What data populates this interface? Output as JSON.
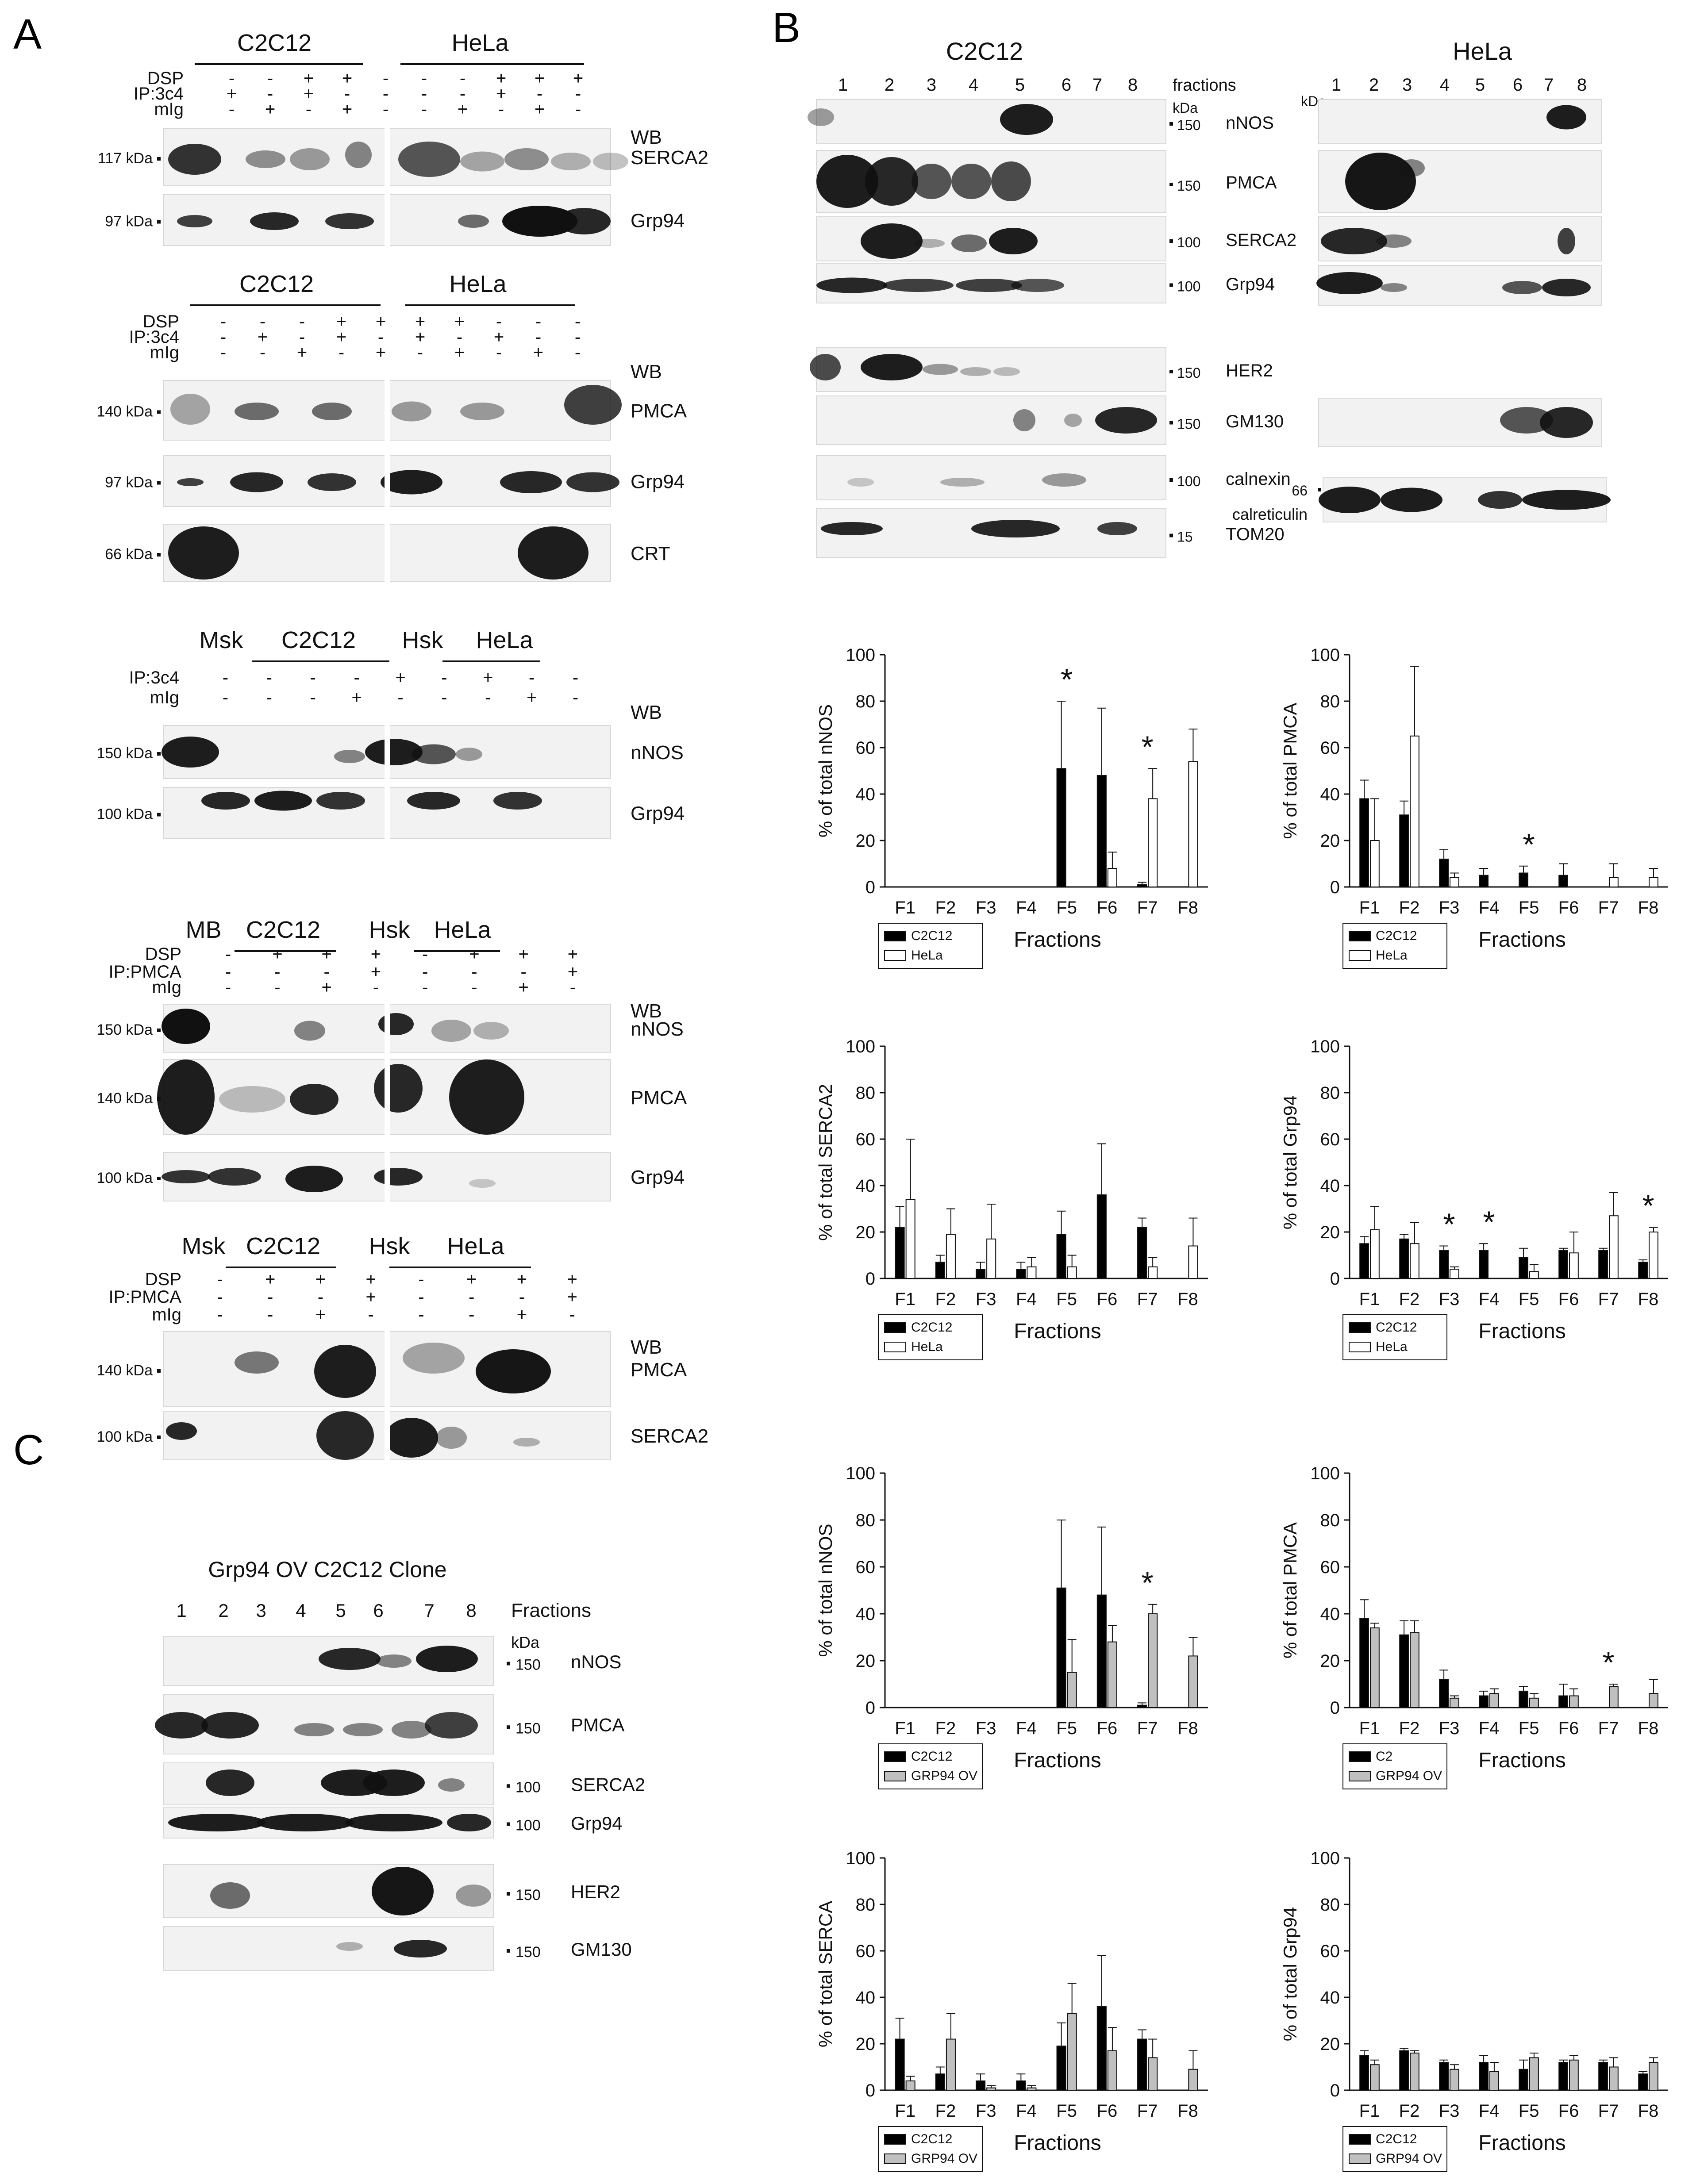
{
  "panel_labels": [
    "A",
    "B",
    "C"
  ],
  "panel_a": {
    "blocks": [
      {
        "headers": [
          "C2C12",
          "HeLa"
        ],
        "row_names": [
          "DSP",
          "IP:3c4",
          "mIg"
        ],
        "lane_signs": [
          [
            "-",
            "-",
            "+",
            "+",
            "-",
            "-",
            "-",
            "+",
            "+",
            "+"
          ],
          [
            "+",
            "-",
            "+",
            "-",
            "-",
            "-",
            "-",
            "+",
            "-",
            "-"
          ],
          [
            "-",
            "+",
            "-",
            "+",
            "-",
            "-",
            "+",
            "-",
            "+",
            "-"
          ]
        ],
        "wb_label": "WB",
        "blots": [
          {
            "marker": "117 kDa",
            "protein": "SERCA2"
          },
          {
            "marker": "97 kDa",
            "protein": "Grp94"
          }
        ]
      },
      {
        "headers": [
          "C2C12",
          "HeLa"
        ],
        "row_names": [
          "DSP",
          "IP:3c4",
          "mIg"
        ],
        "lane_signs": [
          [
            "-",
            "-",
            "-",
            "+",
            "+",
            "+",
            "+",
            "-",
            "-",
            "-"
          ],
          [
            "-",
            "+",
            "-",
            "+",
            "-",
            "+",
            "-",
            "+",
            "-",
            "-"
          ],
          [
            "-",
            "-",
            "+",
            "-",
            "+",
            "-",
            "+",
            "-",
            "+",
            "-"
          ]
        ],
        "wb_label": "WB",
        "blots": [
          {
            "marker": "140 kDa",
            "protein": "PMCA"
          },
          {
            "marker": "97 kDa",
            "protein": "Grp94"
          },
          {
            "marker": "66 kDa",
            "protein": "CRT"
          }
        ]
      },
      {
        "headers": [
          "Msk",
          "C2C12",
          "Hsk",
          "HeLa"
        ],
        "row_names": [
          "IP:3c4",
          "mIg"
        ],
        "lane_signs": [
          [
            "-",
            "-",
            "-",
            "-",
            "+",
            "-",
            "+",
            "-",
            "-"
          ],
          [
            "-",
            "-",
            "-",
            "+",
            "-",
            "-",
            "-",
            "+",
            "-"
          ]
        ],
        "wb_label": "WB",
        "blots": [
          {
            "marker": "150 kDa",
            "protein": "nNOS"
          },
          {
            "marker": "100 kDa",
            "protein": "Grp94"
          }
        ]
      },
      {
        "headers": [
          "MB",
          "C2C12",
          "Hsk",
          "HeLa"
        ],
        "row_names": [
          "DSP",
          "IP:PMCA",
          "mIg"
        ],
        "lane_signs": [
          [
            "-",
            "+",
            "+",
            "+",
            "-",
            "+",
            "+",
            "+"
          ],
          [
            "-",
            "-",
            "-",
            "+",
            "-",
            "-",
            "-",
            "+"
          ],
          [
            "-",
            "-",
            "+",
            "-",
            "-",
            "-",
            "+",
            "-"
          ]
        ],
        "wb_label": "WB",
        "blots": [
          {
            "marker": "150 kDa",
            "protein": "nNOS"
          },
          {
            "marker": "140 kDa",
            "protein": "PMCA"
          },
          {
            "marker": "100 kDa",
            "protein": "Grp94"
          }
        ]
      },
      {
        "headers": [
          "Msk",
          "C2C12",
          "Hsk",
          "HeLa"
        ],
        "row_names": [
          "DSP",
          "IP:PMCA",
          "mIg"
        ],
        "lane_signs": [
          [
            "-",
            "+",
            "+",
            "+",
            "-",
            "+",
            "+",
            "+"
          ],
          [
            "-",
            "-",
            "-",
            "+",
            "-",
            "-",
            "-",
            "+"
          ],
          [
            "-",
            "-",
            "+",
            "-",
            "-",
            "-",
            "+",
            "-"
          ]
        ],
        "wb_label": "WB",
        "blots": [
          {
            "marker": "140 kDa",
            "protein": "PMCA"
          },
          {
            "marker": "100 kDa",
            "protein": "SERCA2"
          }
        ]
      }
    ]
  },
  "panel_b": {
    "left_title": "C2C12",
    "right_title": "HeLa",
    "fractions_label": "fractions",
    "kda_label": "kDa",
    "lane_numbers": [
      "1",
      "2",
      "3",
      "4",
      "5",
      "6",
      "7",
      "8"
    ],
    "c2c12_blots": [
      {
        "protein": "nNOS",
        "marker": "150"
      },
      {
        "protein": "PMCA",
        "marker": "150"
      },
      {
        "protein": "SERCA2",
        "marker": "100"
      },
      {
        "protein": "Grp94",
        "marker": "100"
      },
      {
        "protein": "HER2",
        "marker": "150"
      },
      {
        "protein": "GM130",
        "marker": "150"
      },
      {
        "protein": "calnexin",
        "marker": "100"
      },
      {
        "protein": "TOM20",
        "marker": "15"
      }
    ],
    "hela_extra_marker": "66",
    "hela_extra_protein": "calreticulin"
  },
  "panel_c": {
    "title": "Grp94 OV C2C12 Clone",
    "fractions_label": "Fractions",
    "kda_label": "kDa",
    "lane_numbers": [
      "1",
      "2",
      "3",
      "4",
      "5",
      "6",
      "7",
      "8"
    ],
    "blots": [
      {
        "protein": "nNOS",
        "marker": "150"
      },
      {
        "protein": "PMCA",
        "marker": "150"
      },
      {
        "protein": "SERCA2",
        "marker": "100"
      },
      {
        "protein": "Grp94",
        "marker": "100"
      },
      {
        "protein": "HER2",
        "marker": "150"
      },
      {
        "protein": "GM130",
        "marker": "150"
      }
    ]
  },
  "chart_data": [
    {
      "type": "bar",
      "ylabel": "% of total nNOS",
      "xlabel": "Fractions",
      "categories": [
        "F1",
        "F2",
        "F3",
        "F4",
        "F5",
        "F6",
        "F7",
        "F8"
      ],
      "ylim": [
        0,
        100
      ],
      "yticks": [
        0,
        20,
        40,
        60,
        80,
        100
      ],
      "series": [
        {
          "name": "C2C12",
          "color": "#000000",
          "values": [
            0,
            0,
            0,
            0,
            51,
            48,
            1,
            0
          ],
          "errors": [
            0,
            0,
            0,
            0,
            29,
            29,
            1,
            0
          ]
        },
        {
          "name": "HeLa",
          "color": "#ffffff",
          "values": [
            0,
            0,
            0,
            0,
            0,
            8,
            38,
            54
          ],
          "errors": [
            0,
            0,
            0,
            0,
            0,
            7,
            13,
            14
          ]
        }
      ],
      "significance": [
        "F5",
        "F7"
      ],
      "legend": "bottom-left"
    },
    {
      "type": "bar",
      "ylabel": "% of total PMCA",
      "xlabel": "Fractions",
      "categories": [
        "F1",
        "F2",
        "F3",
        "F4",
        "F5",
        "F6",
        "F7",
        "F8"
      ],
      "ylim": [
        0,
        100
      ],
      "yticks": [
        0,
        20,
        40,
        60,
        80,
        100
      ],
      "series": [
        {
          "name": "C2C12",
          "color": "#000000",
          "values": [
            38,
            31,
            12,
            5,
            6,
            5,
            0,
            0
          ],
          "errors": [
            8,
            6,
            4,
            3,
            3,
            5,
            0,
            0
          ]
        },
        {
          "name": "HeLa",
          "color": "#ffffff",
          "values": [
            20,
            65,
            4,
            0,
            0,
            0,
            4,
            4
          ],
          "errors": [
            18,
            30,
            2,
            0,
            0,
            0,
            6,
            4
          ]
        }
      ],
      "significance": [
        "F5"
      ],
      "legend": "bottom-left"
    },
    {
      "type": "bar",
      "ylabel": "% of total SERCA2",
      "xlabel": "Fractions",
      "categories": [
        "F1",
        "F2",
        "F3",
        "F4",
        "F5",
        "F6",
        "F7",
        "F8"
      ],
      "ylim": [
        0,
        100
      ],
      "yticks": [
        0,
        20,
        40,
        60,
        80,
        100
      ],
      "series": [
        {
          "name": "C2C12",
          "color": "#000000",
          "values": [
            22,
            7,
            4,
            4,
            19,
            36,
            22,
            0
          ],
          "errors": [
            9,
            3,
            3,
            3,
            10,
            22,
            4,
            0
          ]
        },
        {
          "name": "HeLa",
          "color": "#ffffff",
          "values": [
            34,
            19,
            17,
            5,
            5,
            0,
            5,
            14
          ],
          "errors": [
            26,
            11,
            15,
            4,
            5,
            0,
            4,
            12
          ]
        }
      ],
      "significance": [],
      "legend": "bottom-left"
    },
    {
      "type": "bar",
      "ylabel": "% of total Grp94",
      "xlabel": "Fractions",
      "categories": [
        "F1",
        "F2",
        "F3",
        "F4",
        "F5",
        "F6",
        "F7",
        "F8"
      ],
      "ylim": [
        0,
        100
      ],
      "yticks": [
        0,
        20,
        40,
        60,
        80,
        100
      ],
      "series": [
        {
          "name": "C2C12",
          "color": "#000000",
          "values": [
            15,
            17,
            12,
            12,
            9,
            12,
            12,
            7
          ],
          "errors": [
            3,
            2,
            2,
            3,
            4,
            1,
            1,
            1
          ]
        },
        {
          "name": "HeLa",
          "color": "#ffffff",
          "values": [
            21,
            15,
            4,
            0,
            3,
            11,
            27,
            20
          ],
          "errors": [
            10,
            9,
            1,
            0,
            3,
            9,
            10,
            2
          ]
        }
      ],
      "significance": [
        "F3",
        "F4",
        "F8"
      ],
      "legend": "bottom-left"
    },
    {
      "type": "bar",
      "ylabel": "% of total nNOS",
      "xlabel": "Fractions",
      "categories": [
        "F1",
        "F2",
        "F3",
        "F4",
        "F5",
        "F6",
        "F7",
        "F8"
      ],
      "ylim": [
        0,
        100
      ],
      "yticks": [
        0,
        20,
        40,
        60,
        80,
        100
      ],
      "series": [
        {
          "name": "C2C12",
          "color": "#000000",
          "values": [
            0,
            0,
            0,
            0,
            51,
            48,
            1,
            0
          ],
          "errors": [
            0,
            0,
            0,
            0,
            29,
            29,
            1,
            0
          ]
        },
        {
          "name": "GRP94 OV",
          "color": "#c0c0c0",
          "values": [
            0,
            0,
            0,
            0,
            15,
            28,
            40,
            22
          ],
          "errors": [
            0,
            0,
            0,
            0,
            14,
            7,
            4,
            8
          ]
        }
      ],
      "significance": [
        "F7"
      ],
      "legend": "bottom-left"
    },
    {
      "type": "bar",
      "ylabel": "% of total PMCA",
      "xlabel": "Fractions",
      "categories": [
        "F1",
        "F2",
        "F3",
        "F4",
        "F5",
        "F6",
        "F7",
        "F8"
      ],
      "ylim": [
        0,
        100
      ],
      "yticks": [
        0,
        20,
        40,
        60,
        80,
        100
      ],
      "series": [
        {
          "name": "C2",
          "color": "#000000",
          "values": [
            38,
            31,
            12,
            5,
            7,
            5,
            0,
            0
          ],
          "errors": [
            8,
            6,
            4,
            2,
            2,
            5,
            0,
            0
          ]
        },
        {
          "name": "GRP94 OV",
          "color": "#c0c0c0",
          "values": [
            34,
            32,
            4,
            6,
            4,
            5,
            9,
            6
          ],
          "errors": [
            2,
            5,
            1,
            2,
            2,
            3,
            1,
            6
          ]
        }
      ],
      "significance": [
        "F7"
      ],
      "legend": "bottom-left"
    },
    {
      "type": "bar",
      "ylabel": "% of total SERCA",
      "xlabel": "Fractions",
      "categories": [
        "F1",
        "F2",
        "F3",
        "F4",
        "F5",
        "F6",
        "F7",
        "F8"
      ],
      "ylim": [
        0,
        100
      ],
      "yticks": [
        0,
        20,
        40,
        60,
        80,
        100
      ],
      "series": [
        {
          "name": "C2C12",
          "color": "#000000",
          "values": [
            22,
            7,
            4,
            4,
            19,
            36,
            22,
            0
          ],
          "errors": [
            9,
            3,
            3,
            3,
            10,
            22,
            4,
            0
          ]
        },
        {
          "name": "GRP94 OV",
          "color": "#c0c0c0",
          "values": [
            4,
            22,
            1,
            1,
            33,
            17,
            14,
            9
          ],
          "errors": [
            2,
            11,
            1,
            1,
            13,
            10,
            8,
            8
          ]
        }
      ],
      "significance": [],
      "legend": "bottom-left"
    },
    {
      "type": "bar",
      "ylabel": "% of total Grp94",
      "xlabel": "Fractions",
      "categories": [
        "F1",
        "F2",
        "F3",
        "F4",
        "F5",
        "F6",
        "F7",
        "F8"
      ],
      "ylim": [
        0,
        100
      ],
      "yticks": [
        0,
        20,
        40,
        60,
        80,
        100
      ],
      "series": [
        {
          "name": "C2C12",
          "color": "#000000",
          "values": [
            15,
            17,
            12,
            12,
            9,
            12,
            12,
            7
          ],
          "errors": [
            2,
            1,
            1,
            3,
            4,
            1,
            1,
            1
          ]
        },
        {
          "name": "GRP94 OV",
          "color": "#c0c0c0",
          "values": [
            11,
            16,
            9,
            8,
            14,
            13,
            10,
            12
          ],
          "errors": [
            2,
            1,
            2,
            4,
            2,
            2,
            4,
            2
          ]
        }
      ],
      "significance": [],
      "legend": "bottom-left"
    }
  ]
}
